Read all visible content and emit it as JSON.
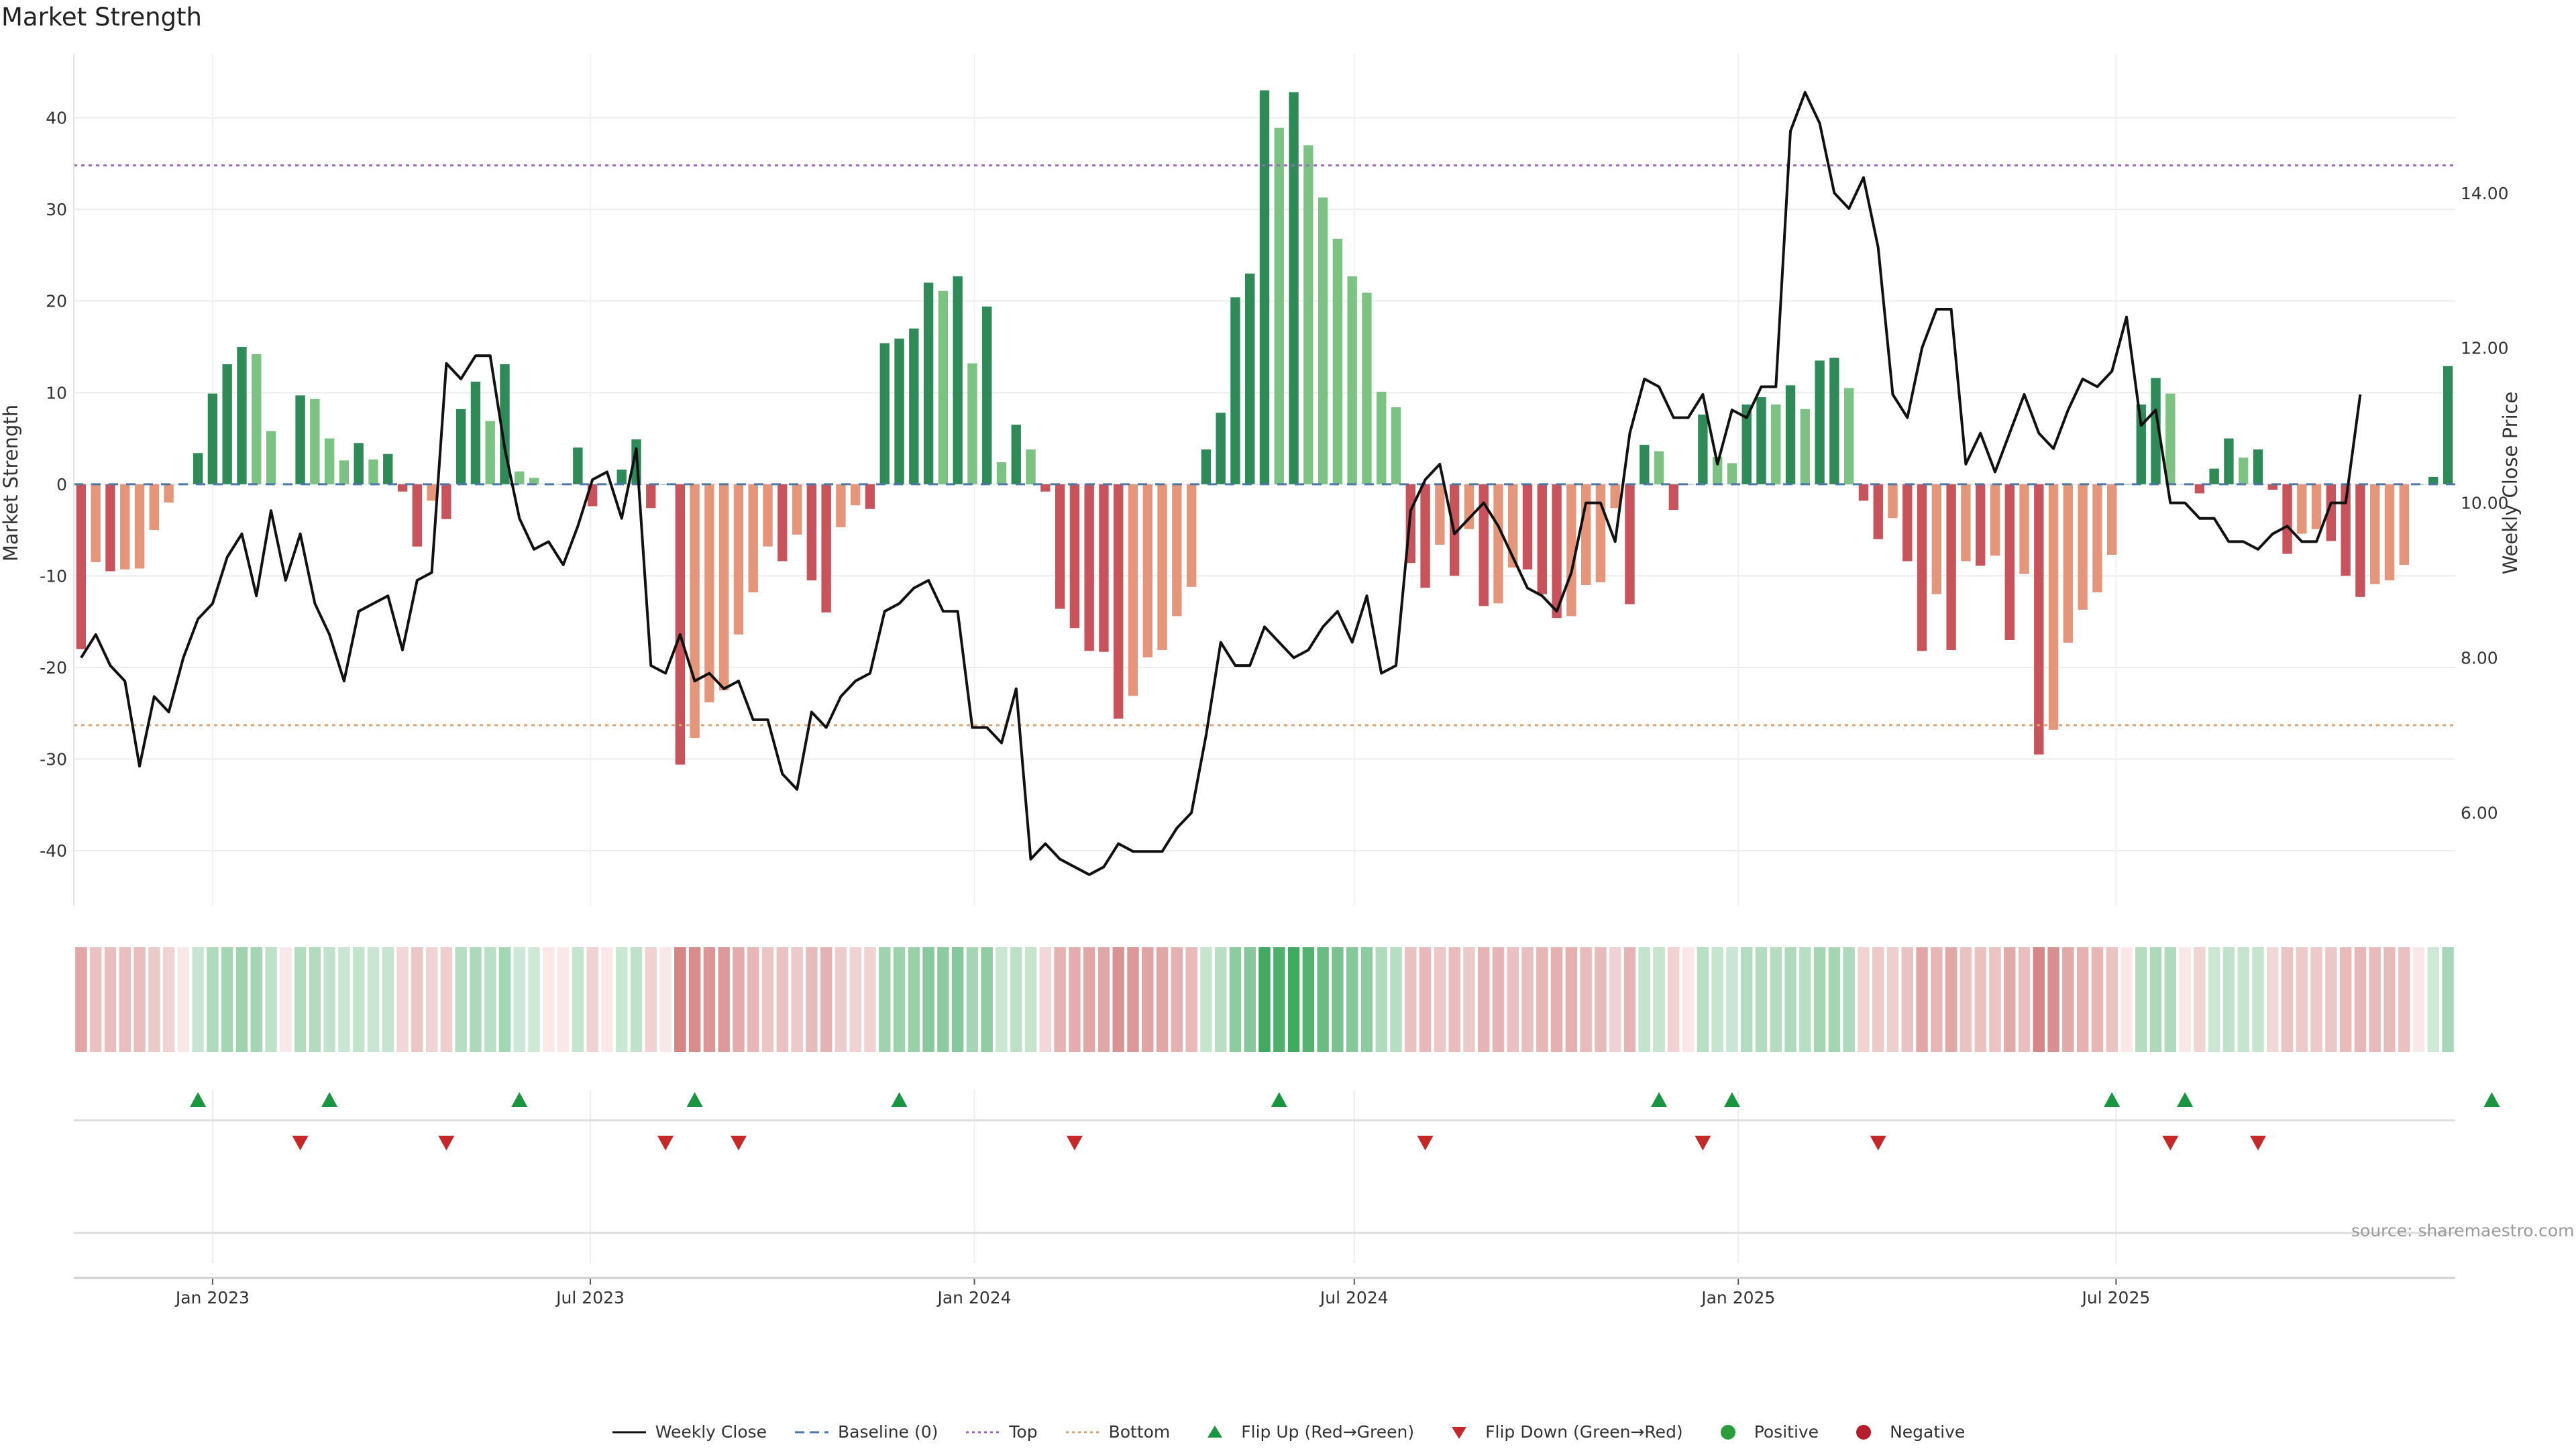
{
  "title": "Market Strength",
  "source_note": "source: sharemaestro.com",
  "colors": {
    "strong_positive": "#2e8b57",
    "weak_positive": "#7cc383",
    "strong_negative": "#c8535a",
    "weak_negative": "#e5967a",
    "price_line": "#111111",
    "baseline": "#4a78a8",
    "top_line": "#a064c8",
    "bottom_line": "#e0a070",
    "flip_up": "#1a9641",
    "flip_down": "#c62828",
    "positive_dot": "#2a9d3a",
    "negative_dot": "#b71c2a"
  },
  "legend": [
    {
      "label": "Weekly Close",
      "marker": "line-solid",
      "color": "#111111"
    },
    {
      "label": "Baseline (0)",
      "marker": "line-dashed",
      "color": "#4a78a8"
    },
    {
      "label": "Top",
      "marker": "line-dotted",
      "color": "#a064c8"
    },
    {
      "label": "Bottom",
      "marker": "line-dotted",
      "color": "#e0a070"
    },
    {
      "label": "Flip Up (Red→Green)",
      "marker": "triangle-up",
      "color": "#1a9641"
    },
    {
      "label": "Flip Down (Green→Red)",
      "marker": "triangle-down",
      "color": "#c62828"
    },
    {
      "label": "Positive",
      "marker": "circle",
      "color": "#2a9d3a"
    },
    {
      "label": "Negative",
      "marker": "circle",
      "color": "#b71c2a"
    }
  ],
  "chart_data": {
    "type": "bar",
    "ylabel_left": "Market Strength",
    "ylabel_right": "Weekly Close Price",
    "ylim_left": [
      -46,
      47
    ],
    "ylim_right": [
      4.8,
      15.8
    ],
    "yticks_left": [
      "40",
      "30",
      "20",
      "10",
      "0",
      "-10",
      "-20",
      "-30",
      "-40"
    ],
    "yticks_right": [
      "14.00",
      "12.00",
      "10.00",
      "8.00",
      "6.00"
    ],
    "xticks": [
      {
        "label": "Jan 2023",
        "date": "2023-01-01"
      },
      {
        "label": "Jul 2023",
        "date": "2023-07-01"
      },
      {
        "label": "Jan 2024",
        "date": "2024-01-01"
      },
      {
        "label": "Jul 2024",
        "date": "2024-07-01"
      },
      {
        "label": "Jan 2025",
        "date": "2025-01-01"
      },
      {
        "label": "Jul 2025",
        "date": "2025-07-01"
      }
    ],
    "top_threshold": 34.8,
    "bottom_threshold": -26.3,
    "grid": true,
    "legend_position": "bottom",
    "series": [
      {
        "name": "Weekly Close",
        "x_start": "2022-10-30",
        "x_step_days": 7,
        "values": [
          8.0,
          8.3,
          7.9,
          7.7,
          6.6,
          7.5,
          7.3,
          8.0,
          8.5,
          8.7,
          9.3,
          9.6,
          8.8,
          9.9,
          9.0,
          9.6,
          8.7,
          8.3,
          7.7,
          8.6,
          8.7,
          8.8,
          8.1,
          9.0,
          9.1,
          11.8,
          11.6,
          11.9,
          11.9,
          10.7,
          9.8,
          9.4,
          9.5,
          9.2,
          9.7,
          10.3,
          10.4,
          9.8,
          10.7,
          7.9,
          7.8,
          8.3,
          7.7,
          7.8,
          7.6,
          7.7,
          7.2,
          7.2,
          6.5,
          6.3,
          7.3,
          7.1,
          7.5,
          7.7,
          7.8,
          8.6,
          8.7,
          8.9,
          9.0,
          8.6,
          8.6,
          7.1,
          7.1,
          6.9,
          7.6,
          5.4,
          5.6,
          5.4,
          5.3,
          5.2,
          5.3,
          5.6,
          5.5,
          5.5,
          5.5,
          5.8,
          6.0,
          7.0,
          8.2,
          7.9,
          7.9,
          8.4,
          8.2,
          8.0,
          8.1,
          8.4,
          8.6,
          8.2,
          8.8,
          7.8,
          7.9,
          9.9,
          10.3,
          10.5,
          9.6,
          9.8,
          10.0,
          9.7,
          9.3,
          8.9,
          8.8,
          8.6,
          9.1,
          10.0,
          10.0,
          9.5,
          10.9,
          11.6,
          11.5,
          11.1,
          11.1,
          11.4,
          10.5,
          11.2,
          11.1,
          11.5,
          11.5,
          14.8,
          15.3,
          14.9,
          14.0,
          13.8,
          14.2,
          13.3,
          11.4,
          11.1,
          12.0,
          12.5,
          12.5,
          10.5,
          10.9,
          10.4,
          10.9,
          11.4,
          10.9,
          10.7,
          11.2,
          11.6,
          11.5,
          11.7,
          12.4,
          11.0,
          11.2,
          10.0,
          10.0,
          9.8,
          9.8,
          9.5,
          9.5,
          9.4,
          9.6,
          9.7,
          9.5,
          9.5,
          10.0,
          10.0,
          11.4
        ]
      },
      {
        "name": "Market Strength",
        "x_start": "2022-10-30",
        "x_step_days": 7,
        "values": [
          -18.0,
          -8.5,
          -9.5,
          -9.3,
          -9.2,
          -5.0,
          -2.0,
          0,
          3.4,
          9.9,
          13.1,
          15.0,
          14.2,
          5.8,
          0,
          9.7,
          9.3,
          5.0,
          2.6,
          4.5,
          2.7,
          3.3,
          -0.8,
          -6.8,
          -1.8,
          -3.8,
          8.2,
          11.2,
          6.9,
          13.1,
          1.4,
          0.7,
          0,
          0,
          4.0,
          -2.4,
          0,
          1.6,
          4.9,
          -2.6,
          0,
          -30.6,
          -27.7,
          -23.8,
          -22.5,
          -16.4,
          -11.8,
          -6.8,
          -8.4,
          -5.5,
          -10.5,
          -14.0,
          -4.7,
          -2.3,
          -2.7,
          15.4,
          15.9,
          17.0,
          22.0,
          21.1,
          22.7,
          13.2,
          19.4,
          2.4,
          6.5,
          3.8,
          -0.8,
          -13.6,
          -15.7,
          -18.2,
          -18.3,
          -25.6,
          -23.1,
          -18.9,
          -18.1,
          -14.4,
          -11.2,
          3.8,
          7.8,
          20.4,
          23.0,
          43.0,
          38.9,
          42.8,
          37.0,
          31.3,
          26.8,
          22.7,
          20.9,
          10.1,
          8.4,
          -8.6,
          -11.3,
          -6.6,
          -10.0,
          -4.9,
          -13.3,
          -13.0,
          -9.1,
          -9.3,
          -12.0,
          -14.6,
          -14.4,
          -11.0,
          -10.7,
          -2.6,
          -13.1,
          4.3,
          3.6,
          -2.8,
          0,
          7.6,
          3.0,
          2.3,
          8.7,
          9.5,
          8.7,
          10.8,
          8.2,
          13.5,
          13.8,
          10.5,
          -1.8,
          -6.0,
          -3.7,
          -8.4,
          -18.2,
          -12.0,
          -18.1,
          -8.4,
          -8.9,
          -7.8,
          -17.0,
          -9.8,
          -29.5,
          -26.8,
          -17.3,
          -13.7,
          -11.8,
          -7.7,
          0,
          8.7,
          11.6,
          9.9,
          0,
          -1.0,
          1.7,
          5.0,
          2.9,
          3.8,
          -0.6,
          -7.6,
          -5.4,
          -4.9,
          -6.2,
          -10.0,
          -12.3,
          -10.9,
          -10.5,
          -8.8,
          0,
          0.8,
          12.9
        ]
      }
    ],
    "flip_up_dates": [
      "2022-12-25",
      "2023-02-26",
      "2023-05-28",
      "2023-08-20",
      "2023-11-26",
      "2024-05-26",
      "2024-11-24",
      "2024-12-29",
      "2025-06-29",
      "2025-08-03",
      "2025-12-28"
    ],
    "flip_down_dates": [
      "2023-02-12",
      "2023-04-23",
      "2023-08-06",
      "2023-09-10",
      "2024-02-18",
      "2024-08-04",
      "2024-12-15",
      "2025-03-09",
      "2025-07-27",
      "2025-09-07"
    ]
  }
}
